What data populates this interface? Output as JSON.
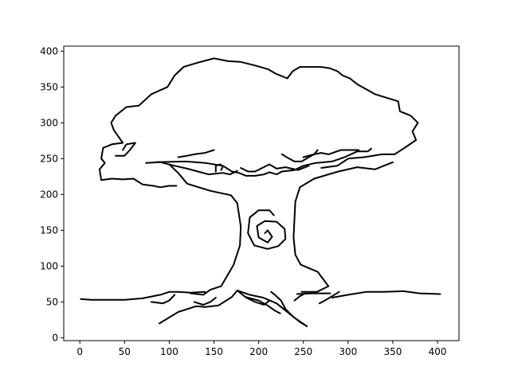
{
  "chart_data": {
    "type": "line",
    "title": "",
    "xlabel": "",
    "ylabel": "",
    "xlim": [
      -18,
      424
    ],
    "ylim": [
      -4,
      407
    ],
    "grid": false,
    "legend": "none",
    "line_color": "#000000",
    "x_ticks": [
      0,
      50,
      100,
      150,
      200,
      250,
      300,
      350,
      400
    ],
    "y_ticks": [
      0,
      50,
      100,
      150,
      200,
      250,
      300,
      350,
      400
    ],
    "strokes": [
      {
        "name": "ground",
        "points": [
          [
            1,
            54
          ],
          [
            13,
            53
          ],
          [
            50,
            53
          ],
          [
            70,
            55
          ],
          [
            90,
            60
          ],
          [
            100,
            64
          ],
          [
            110,
            64
          ],
          [
            124,
            63
          ],
          [
            140,
            64
          ]
        ]
      },
      {
        "name": "ground-right",
        "points": [
          [
            282,
            56
          ],
          [
            300,
            60
          ],
          [
            320,
            64
          ],
          [
            340,
            64
          ],
          [
            362,
            65
          ],
          [
            380,
            62
          ],
          [
            403,
            61
          ]
        ]
      },
      {
        "name": "ground-mid",
        "points": [
          [
            243,
            61
          ],
          [
            260,
            62
          ],
          [
            280,
            62
          ]
        ]
      },
      {
        "name": "trunk-left",
        "points": [
          [
            124,
            62
          ],
          [
            138,
            60
          ],
          [
            146,
            67
          ],
          [
            158,
            72
          ],
          [
            172,
            102
          ],
          [
            179,
            129
          ],
          [
            180,
            155
          ],
          [
            176,
            188
          ],
          [
            169,
            199
          ],
          [
            146,
            205
          ],
          [
            120,
            215
          ],
          [
            110,
            230
          ],
          [
            100,
            242
          ]
        ]
      },
      {
        "name": "trunk-right",
        "points": [
          [
            248,
            64
          ],
          [
            265,
            64
          ],
          [
            278,
            72
          ],
          [
            266,
            92
          ],
          [
            247,
            102
          ],
          [
            241,
            116
          ],
          [
            239,
            140
          ],
          [
            241,
            190
          ],
          [
            246,
            210
          ],
          [
            262,
            222
          ],
          [
            289,
            232
          ],
          [
            310,
            238
          ],
          [
            330,
            235
          ],
          [
            350,
            245
          ]
        ]
      },
      {
        "name": "root-left",
        "points": [
          [
            89,
            20
          ],
          [
            110,
            36
          ],
          [
            130,
            44
          ],
          [
            140,
            43
          ],
          [
            155,
            45
          ],
          [
            170,
            57
          ],
          [
            176,
            66
          ]
        ]
      },
      {
        "name": "root-center",
        "points": [
          [
            176,
            66
          ],
          [
            190,
            60
          ],
          [
            205,
            56
          ],
          [
            220,
            48
          ],
          [
            230,
            38
          ],
          [
            240,
            28
          ],
          [
            254,
            16
          ],
          [
            246,
            22
          ],
          [
            238,
            30
          ],
          [
            230,
            40
          ],
          [
            225,
            52
          ],
          [
            218,
            60
          ],
          [
            214,
            64
          ]
        ]
      },
      {
        "name": "root-center-left",
        "points": [
          [
            176,
            66
          ],
          [
            185,
            57
          ],
          [
            200,
            52
          ],
          [
            210,
            45
          ],
          [
            218,
            38
          ],
          [
            224,
            34
          ]
        ]
      },
      {
        "name": "knot-outer",
        "points": [
          [
            217,
            171
          ],
          [
            212,
            178
          ],
          [
            200,
            178
          ],
          [
            190,
            168
          ],
          [
            188,
            146
          ],
          [
            195,
            129
          ],
          [
            210,
            124
          ],
          [
            222,
            128
          ],
          [
            230,
            138
          ],
          [
            229,
            152
          ],
          [
            220,
            162
          ],
          [
            207,
            163
          ],
          [
            198,
            156
          ],
          [
            200,
            140
          ],
          [
            210,
            133
          ],
          [
            215,
            141
          ],
          [
            210,
            150
          ],
          [
            207,
            146
          ]
        ]
      },
      {
        "name": "canopy-top",
        "points": [
          [
            85,
            245
          ],
          [
            118,
            246
          ],
          [
            140,
            244
          ],
          [
            160,
            240
          ],
          [
            170,
            232
          ],
          [
            178,
            230
          ],
          [
            186,
            226
          ],
          [
            196,
            226
          ],
          [
            206,
            228
          ],
          [
            212,
            231
          ],
          [
            220,
            228
          ],
          [
            226,
            232
          ],
          [
            240,
            234
          ],
          [
            250,
            240
          ],
          [
            264,
            244
          ],
          [
            282,
            246
          ],
          [
            296,
            252
          ],
          [
            310,
            260
          ],
          [
            322,
            260
          ],
          [
            326,
            264
          ]
        ]
      },
      {
        "name": "canopy-outline",
        "points": [
          [
            36,
            222
          ],
          [
            24,
            220
          ],
          [
            22,
            235
          ],
          [
            28,
            244
          ],
          [
            24,
            250
          ],
          [
            26,
            265
          ],
          [
            36,
            270
          ],
          [
            48,
            272
          ],
          [
            38,
            290
          ],
          [
            35,
            300
          ],
          [
            40,
            310
          ],
          [
            52,
            322
          ],
          [
            66,
            324
          ],
          [
            80,
            340
          ],
          [
            98,
            350
          ],
          [
            106,
            366
          ],
          [
            116,
            378
          ],
          [
            132,
            384
          ],
          [
            150,
            390
          ],
          [
            166,
            386
          ],
          [
            180,
            385
          ],
          [
            196,
            380
          ],
          [
            210,
            375
          ],
          [
            220,
            368
          ],
          [
            232,
            362
          ],
          [
            238,
            372
          ],
          [
            246,
            378
          ],
          [
            270,
            378
          ],
          [
            280,
            376
          ],
          [
            288,
            372
          ],
          [
            294,
            366
          ],
          [
            302,
            362
          ],
          [
            310,
            354
          ],
          [
            330,
            340
          ],
          [
            348,
            333
          ],
          [
            356,
            330
          ],
          [
            358,
            316
          ],
          [
            370,
            310
          ],
          [
            378,
            300
          ],
          [
            372,
            288
          ],
          [
            376,
            276
          ],
          [
            362,
            264
          ],
          [
            352,
            256
          ],
          [
            338,
            256
          ],
          [
            318,
            252
          ],
          [
            300,
            250
          ],
          [
            288,
            240
          ],
          [
            270,
            237
          ]
        ]
      },
      {
        "name": "canopy-inner-1",
        "points": [
          [
            36,
            222
          ],
          [
            48,
            221
          ],
          [
            60,
            222
          ],
          [
            70,
            214
          ],
          [
            82,
            212
          ],
          [
            90,
            210
          ],
          [
            100,
            212
          ],
          [
            108,
            212
          ]
        ]
      },
      {
        "name": "canopy-inner-2",
        "points": [
          [
            74,
            244
          ],
          [
            90,
            245
          ],
          [
            106,
            240
          ],
          [
            120,
            236
          ],
          [
            132,
            232
          ],
          [
            144,
            228
          ],
          [
            160,
            230
          ],
          [
            168,
            228
          ],
          [
            176,
            233
          ]
        ]
      },
      {
        "name": "canopy-inner-3",
        "points": [
          [
            180,
            237
          ],
          [
            188,
            232
          ],
          [
            196,
            232
          ],
          [
            212,
            242
          ],
          [
            220,
            236
          ],
          [
            230,
            238
          ],
          [
            244,
            234
          ],
          [
            256,
            240
          ]
        ]
      },
      {
        "name": "canopy-inner-4",
        "points": [
          [
            250,
            252
          ],
          [
            262,
            256
          ],
          [
            270,
            258
          ],
          [
            278,
            256
          ],
          [
            292,
            262
          ],
          [
            302,
            262
          ],
          [
            312,
            262
          ]
        ]
      },
      {
        "name": "canopy-hook-1",
        "points": [
          [
            152,
            232
          ],
          [
            152,
            240
          ],
          [
            157,
            242
          ],
          [
            160,
            239
          ],
          [
            158,
            234
          ]
        ]
      },
      {
        "name": "canopy-hook-2",
        "points": [
          [
            226,
            256
          ],
          [
            234,
            250
          ],
          [
            240,
            246
          ],
          [
            248,
            246
          ],
          [
            256,
            252
          ],
          [
            262,
            256
          ],
          [
            266,
            262
          ]
        ]
      },
      {
        "name": "canopy-hook-3",
        "points": [
          [
            40,
            254
          ],
          [
            50,
            254
          ],
          [
            56,
            262
          ],
          [
            62,
            272
          ],
          [
            52,
            270
          ],
          [
            48,
            262
          ]
        ]
      },
      {
        "name": "canopy-hook-4",
        "points": [
          [
            110,
            252
          ],
          [
            120,
            254
          ],
          [
            128,
            256
          ],
          [
            140,
            258
          ],
          [
            150,
            262
          ]
        ]
      },
      {
        "name": "grass-1",
        "points": [
          [
            80,
            50
          ],
          [
            93,
            48
          ],
          [
            100,
            52
          ],
          [
            106,
            60
          ]
        ]
      },
      {
        "name": "grass-2",
        "points": [
          [
            128,
            50
          ],
          [
            138,
            46
          ],
          [
            146,
            50
          ],
          [
            152,
            56
          ]
        ]
      },
      {
        "name": "grass-3",
        "points": [
          [
            186,
            56
          ],
          [
            196,
            50
          ],
          [
            206,
            46
          ],
          [
            212,
            52
          ]
        ]
      },
      {
        "name": "grass-4",
        "points": [
          [
            268,
            48
          ],
          [
            274,
            52
          ],
          [
            282,
            58
          ],
          [
            290,
            64
          ]
        ]
      },
      {
        "name": "grass-5",
        "points": [
          [
            240,
            52
          ],
          [
            246,
            58
          ],
          [
            252,
            62
          ]
        ]
      }
    ]
  }
}
